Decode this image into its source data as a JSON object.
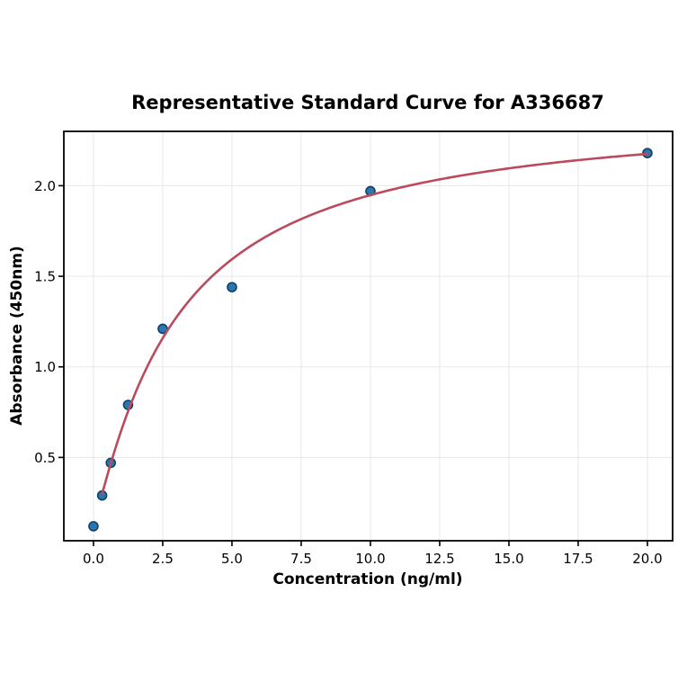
{
  "figure": {
    "background_color": "#ffffff"
  },
  "chart_data": {
    "type": "scatter",
    "title": "Representative Standard Curve for A336687",
    "xlabel": "Concentration (ng/ml)",
    "ylabel": "Absorbance (450nm)",
    "xlim": [
      -1.07,
      20.91
    ],
    "ylim": [
      0.04,
      2.3
    ],
    "grid": true,
    "legend": null,
    "xticks": [
      0.0,
      2.5,
      5.0,
      7.5,
      10.0,
      12.5,
      15.0,
      17.5,
      20.0
    ],
    "xtick_labels": [
      "0.0",
      "2.5",
      "5.0",
      "7.5",
      "10.0",
      "12.5",
      "15.0",
      "17.5",
      "20.0"
    ],
    "yticks": [
      0.5,
      1.0,
      1.5,
      2.0
    ],
    "ytick_labels": [
      "0.5",
      "1.0",
      "1.5",
      "2.0"
    ],
    "series": [
      {
        "name": "standard-points",
        "type": "scatter",
        "marker": "circle",
        "marker_color": "#2677b4",
        "marker_edge_color": "#173f5f",
        "points": [
          {
            "x": 0,
            "y": 0.12
          },
          {
            "x": 0.313,
            "y": 0.29
          },
          {
            "x": 0.625,
            "y": 0.47
          },
          {
            "x": 1.25,
            "y": 0.79
          },
          {
            "x": 2.5,
            "y": 1.21
          },
          {
            "x": 5,
            "y": 1.44
          },
          {
            "x": 10,
            "y": 1.97
          },
          {
            "x": 20,
            "y": 2.18
          }
        ]
      },
      {
        "name": "4pl-fit-curve",
        "type": "line",
        "color": "#bc4a5e",
        "line_width": 2.6,
        "fit": {
          "model": "4PL",
          "a": 0.13,
          "b": 1.12,
          "c": 3.0,
          "d": 2.42,
          "x_start": 0.313,
          "x_end": 20
        }
      }
    ]
  }
}
